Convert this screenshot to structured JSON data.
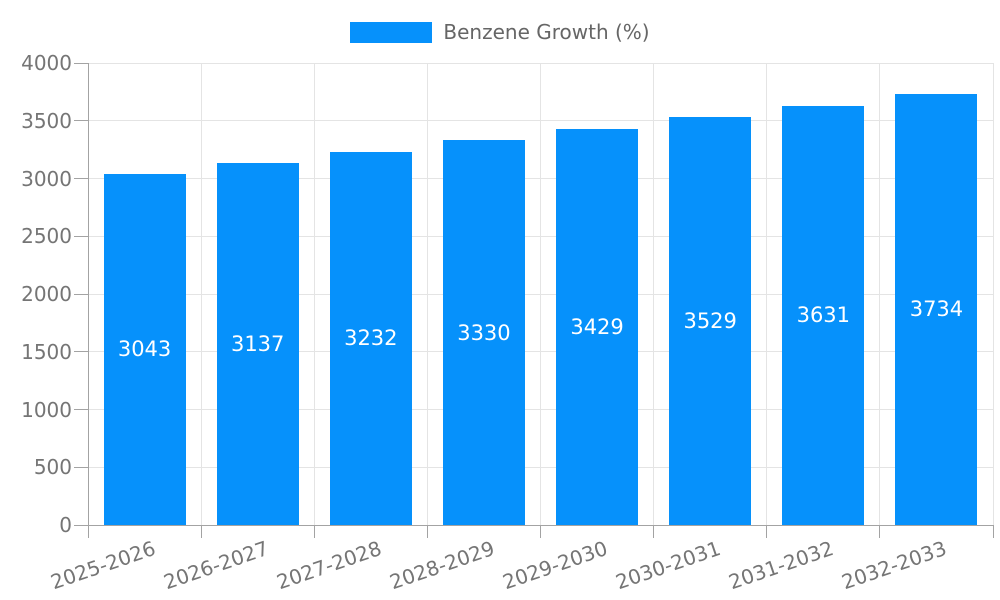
{
  "chart_data": {
    "type": "bar",
    "title": "",
    "legend_label": "Benzene Growth (%)",
    "legend_position": "top",
    "categories": [
      "2025-2026",
      "2026-2027",
      "2027-2028",
      "2028-2029",
      "2029-2030",
      "2030-2031",
      "2031-2032",
      "2032-2033"
    ],
    "series": [
      {
        "name": "Benzene Growth (%)",
        "values": [
          3043,
          3137,
          3232,
          3330,
          3429,
          3529,
          3631,
          3734
        ]
      }
    ],
    "value_labels": "inside-center",
    "xlabel": "",
    "ylabel": "",
    "ylim": [
      0,
      4000
    ],
    "yticks": [
      0,
      500,
      1000,
      1500,
      2000,
      2500,
      3000,
      3500,
      4000
    ],
    "grid": true,
    "colors": {
      "bar": "#0691fb",
      "grid": "#e4e4e4",
      "axis": "#a3a3a3",
      "tick_label": "#757575",
      "legend_text": "#666666",
      "value_label": "#ffffff",
      "background": "#ffffff"
    }
  }
}
